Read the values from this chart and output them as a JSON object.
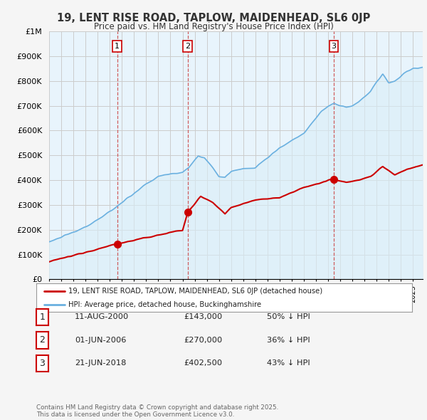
{
  "title": "19, LENT RISE ROAD, TAPLOW, MAIDENHEAD, SL6 0JP",
  "subtitle": "Price paid vs. HM Land Registry's House Price Index (HPI)",
  "ylim": [
    0,
    1000000
  ],
  "yticks": [
    0,
    100000,
    200000,
    300000,
    400000,
    500000,
    600000,
    700000,
    800000,
    900000,
    1000000
  ],
  "ytick_labels": [
    "£0",
    "£100K",
    "£200K",
    "£300K",
    "£400K",
    "£500K",
    "£600K",
    "£700K",
    "£800K",
    "£900K",
    "£1M"
  ],
  "hpi_color": "#6ab0e0",
  "hpi_fill_color": "#daeef8",
  "price_color": "#cc0000",
  "grid_color": "#cccccc",
  "bg_color": "#f0f8ff",
  "plot_bg_color": "#e8f4fc",
  "sales": [
    {
      "date_str": "11-AUG-2000",
      "date_num": 2000.61,
      "price": 143000,
      "label": "1"
    },
    {
      "date_str": "01-JUN-2006",
      "date_num": 2006.42,
      "price": 270000,
      "label": "2"
    },
    {
      "date_str": "21-JUN-2018",
      "date_num": 2018.47,
      "price": 402500,
      "label": "3"
    }
  ],
  "legend_property": "19, LENT RISE ROAD, TAPLOW, MAIDENHEAD, SL6 0JP (detached house)",
  "legend_hpi": "HPI: Average price, detached house, Buckinghamshire",
  "table_rows": [
    {
      "num": "1",
      "date": "11-AUG-2000",
      "price": "£143,000",
      "pct": "50% ↓ HPI"
    },
    {
      "num": "2",
      "date": "01-JUN-2006",
      "price": "£270,000",
      "pct": "36% ↓ HPI"
    },
    {
      "num": "3",
      "date": "21-JUN-2018",
      "price": "£402,500",
      "pct": "43% ↓ HPI"
    }
  ],
  "footer": "Contains HM Land Registry data © Crown copyright and database right 2025.\nThis data is licensed under the Open Government Licence v3.0.",
  "xmin": 1995.0,
  "xmax": 2025.8
}
